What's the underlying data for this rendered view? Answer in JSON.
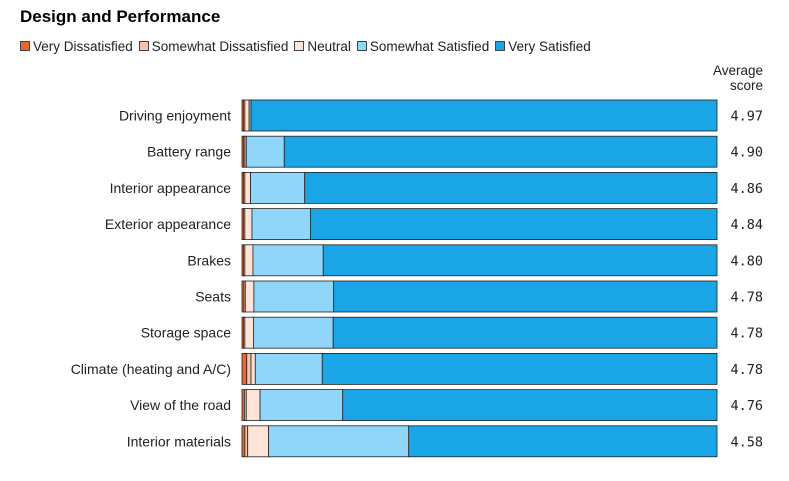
{
  "chart_data": {
    "type": "bar",
    "orientation": "horizontal",
    "stacked": "100%",
    "title": "Design and Performance",
    "score_header": [
      "Average",
      "score"
    ],
    "categories": [
      "Driving enjoyment",
      "Battery range",
      "Interior appearance",
      "Exterior appearance",
      "Brakes",
      "Seats",
      "Storage space",
      "Climate (heating and A/C)",
      "View of the road",
      "Interior materials"
    ],
    "average_scores": [
      "4.97",
      "4.90",
      "4.86",
      "4.84",
      "4.80",
      "4.78",
      "4.78",
      "4.78",
      "4.76",
      "4.58"
    ],
    "series": [
      {
        "name": "Very Dissatisfied",
        "color": "#e8692f",
        "values": [
          0.3,
          0.3,
          0.3,
          0.3,
          0.3,
          0.4,
          0.3,
          1.0,
          0.5,
          0.6
        ]
      },
      {
        "name": "Somewhat Dissatisfied",
        "color": "#f6c3a6",
        "values": [
          0.3,
          0.3,
          0.3,
          0.3,
          0.3,
          0.3,
          0.3,
          0.9,
          0.4,
          0.6
        ]
      },
      {
        "name": "Neutral",
        "color": "#fde4d7",
        "values": [
          0.9,
          0.3,
          1.2,
          1.5,
          1.7,
          1.8,
          1.8,
          0.9,
          2.9,
          4.4
        ]
      },
      {
        "name": "Somewhat Satisfied",
        "color": "#8fd6fa",
        "values": [
          0.4,
          8.0,
          11.4,
          12.3,
          14.8,
          16.8,
          16.8,
          14.1,
          17.4,
          29.5
        ]
      },
      {
        "name": "Very Satisfied",
        "color": "#1aa6e6",
        "values": [
          98.1,
          91.1,
          86.8,
          85.6,
          82.9,
          80.7,
          80.8,
          83.1,
          78.8,
          64.9
        ]
      }
    ],
    "xlim": [
      0,
      100
    ],
    "legend_position": "top-left"
  }
}
